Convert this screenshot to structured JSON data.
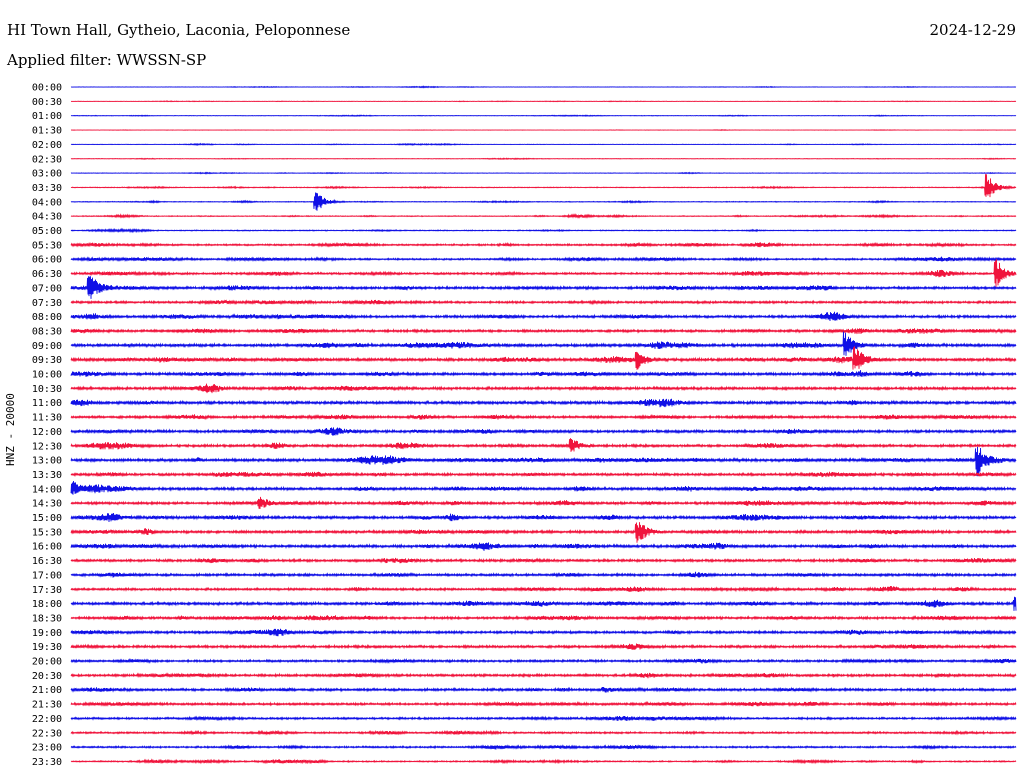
{
  "header": {
    "station": "HI Town Hall, Gytheio, Laconia, Peloponnese",
    "filter": "Applied filter: WWSSN-SP",
    "date": "2024-12-29",
    "channel": "HNZ - 20000"
  },
  "chart_data": {
    "type": "line",
    "title": "HI Town Hall, Gytheio, Laconia, Peloponnese",
    "subtitle": "Applied filter: WWSSN-SP",
    "ylabel": "HNZ - 20000",
    "colors": {
      "even_trace": "#1010e6",
      "odd_trace": "#f0143c"
    },
    "rows": [
      "00:00",
      "00:30",
      "01:00",
      "01:30",
      "02:00",
      "02:30",
      "03:00",
      "03:30",
      "04:00",
      "04:30",
      "05:00",
      "05:30",
      "06:00",
      "06:30",
      "07:00",
      "07:30",
      "08:00",
      "08:30",
      "09:00",
      "09:30",
      "10:00",
      "10:30",
      "11:00",
      "11:30",
      "12:00",
      "12:30",
      "13:00",
      "13:30",
      "14:00",
      "14:30",
      "15:00",
      "15:30",
      "16:00",
      "16:30",
      "17:00",
      "17:30",
      "18:00",
      "18:30",
      "19:00",
      "19:30",
      "20:00",
      "20:30",
      "21:00",
      "21:30",
      "22:00",
      "22:30",
      "23:00",
      "23:30"
    ],
    "row_noise_level": [
      0.08,
      0.08,
      0.09,
      0.06,
      0.1,
      0.12,
      0.12,
      0.18,
      0.18,
      0.2,
      0.22,
      0.4,
      0.4,
      0.45,
      0.55,
      0.5,
      0.55,
      0.55,
      0.65,
      0.65,
      0.6,
      0.6,
      0.65,
      0.55,
      0.6,
      0.55,
      0.65,
      0.55,
      0.6,
      0.55,
      0.6,
      0.6,
      0.6,
      0.55,
      0.55,
      0.5,
      0.6,
      0.55,
      0.55,
      0.55,
      0.5,
      0.55,
      0.55,
      0.5,
      0.45,
      0.4,
      0.4,
      0.3
    ],
    "events": [
      {
        "row": "03:30",
        "fraction": 0.97,
        "amplitude": 1.6
      },
      {
        "row": "04:00",
        "fraction": 0.26,
        "amplitude": 1.4
      },
      {
        "row": "06:30",
        "fraction": 0.98,
        "amplitude": 1.8
      },
      {
        "row": "07:00",
        "fraction": 0.02,
        "amplitude": 1.6
      },
      {
        "row": "09:00",
        "fraction": 0.82,
        "amplitude": 1.6
      },
      {
        "row": "09:30",
        "fraction": 0.83,
        "amplitude": 1.4
      },
      {
        "row": "09:30",
        "fraction": 0.6,
        "amplitude": 1.0
      },
      {
        "row": "13:00",
        "fraction": 0.96,
        "amplitude": 2.0
      },
      {
        "row": "14:00",
        "fraction": 0.0,
        "amplitude": 1.2
      },
      {
        "row": "15:30",
        "fraction": 0.6,
        "amplitude": 1.6
      },
      {
        "row": "12:30",
        "fraction": 0.53,
        "amplitude": 0.8
      },
      {
        "row": "14:30",
        "fraction": 0.2,
        "amplitude": 0.8
      },
      {
        "row": "18:00",
        "fraction": 1.0,
        "amplitude": 0.8
      }
    ]
  }
}
